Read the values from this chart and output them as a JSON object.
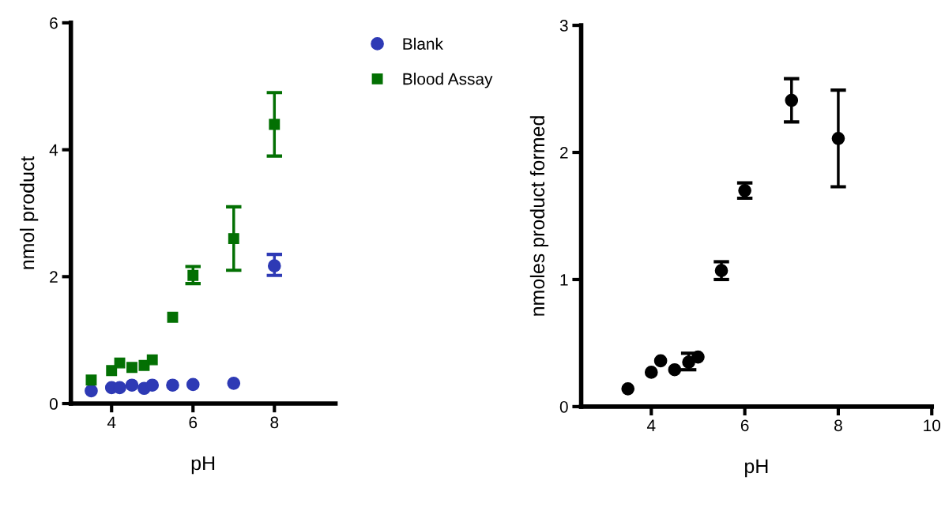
{
  "chart_data": [
    {
      "type": "scatter",
      "xlabel": "pH",
      "ylabel": "nmol product",
      "xlim": [
        3,
        9.5
      ],
      "xticks": [
        4,
        6,
        8
      ],
      "ylim": [
        0,
        6
      ],
      "yticks": [
        0,
        2,
        4,
        6
      ],
      "grid": false,
      "legend": "top right",
      "series": [
        {
          "name": "Blank",
          "color": "#2e3ab5",
          "marker": "circle",
          "x": [
            3.5,
            4,
            4.2,
            4.5,
            4.8,
            5,
            5.5,
            6,
            7,
            8
          ],
          "values": [
            0.2,
            0.25,
            0.25,
            0.29,
            0.24,
            0.29,
            0.29,
            0.3,
            0.32,
            2.17
          ],
          "errors": [
            null,
            null,
            null,
            null,
            null,
            null,
            null,
            null,
            null,
            [
              2.02,
              2.35
            ]
          ]
        },
        {
          "name": "Blood Assay",
          "color": "#037003",
          "marker": "square",
          "x": [
            3.5,
            4,
            4.2,
            4.5,
            4.8,
            5,
            5.5,
            6,
            7,
            8
          ],
          "values": [
            0.37,
            0.52,
            0.64,
            0.57,
            0.6,
            0.69,
            1.36,
            2.02,
            2.6,
            4.4
          ],
          "errors": [
            null,
            null,
            null,
            null,
            null,
            null,
            null,
            [
              1.89,
              2.16
            ],
            [
              2.1,
              3.1
            ],
            [
              3.9,
              4.9
            ]
          ]
        }
      ]
    },
    {
      "type": "scatter",
      "xlabel": "pH",
      "ylabel": "nmoles product formed",
      "xlim": [
        2.5,
        10
      ],
      "xticks": [
        4,
        6,
        8,
        10
      ],
      "ylim": [
        0,
        3
      ],
      "yticks": [
        0,
        1,
        2,
        3
      ],
      "grid": false,
      "legend": false,
      "series": [
        {
          "color": "#000000",
          "marker": "circle",
          "x": [
            3.5,
            4,
            4.2,
            4.5,
            4.8,
            5,
            5.5,
            6,
            7,
            8
          ],
          "values": [
            0.14,
            0.27,
            0.36,
            0.29,
            0.35,
            0.39,
            1.07,
            1.7,
            2.41,
            2.11
          ],
          "errors": [
            null,
            null,
            null,
            null,
            [
              0.29,
              0.42
            ],
            null,
            [
              1.0,
              1.14
            ],
            [
              1.64,
              1.76
            ],
            [
              2.24,
              2.58
            ],
            [
              1.73,
              2.49
            ]
          ]
        }
      ]
    }
  ]
}
